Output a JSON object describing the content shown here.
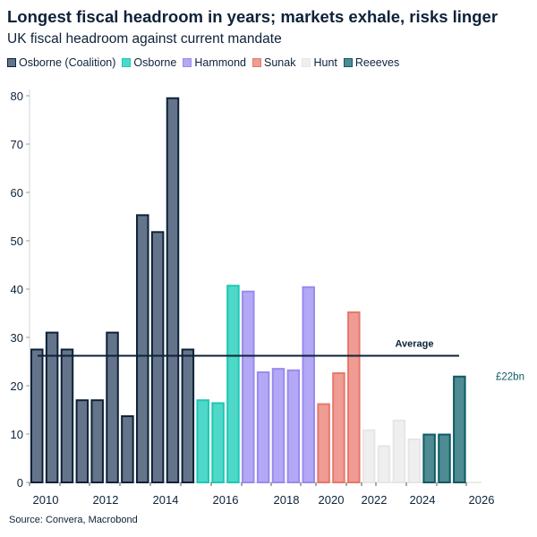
{
  "chart_data": {
    "type": "bar",
    "title": "Longest fiscal headroom in years; markets exhale, risks linger",
    "subtitle": "UK fiscal headroom against current mandate",
    "source": "Source: Convera, Macrobond",
    "ylim": [
      0,
      80
    ],
    "yticks": [
      0,
      10,
      20,
      30,
      40,
      50,
      60,
      70,
      80
    ],
    "xtick_labels": [
      "2010",
      "2012",
      "2014",
      "2016",
      "2018",
      "2020",
      "2022",
      "2024",
      "2026"
    ],
    "grid": false,
    "legend_placement": "top",
    "series": [
      {
        "name": "Osborne (Coalition)",
        "fill": "#64748a",
        "stroke": "#0d2238",
        "values": [
          27.5,
          31,
          27.5,
          17,
          17,
          31,
          13.7,
          55.3,
          51.8,
          79.5,
          27.5
        ]
      },
      {
        "name": "Osborne",
        "fill": "#4fd8c8",
        "stroke": "#1cc8b4",
        "values": [
          17,
          16.4,
          40.7
        ]
      },
      {
        "name": "Hammond",
        "fill": "#b3a8f5",
        "stroke": "#9a8aef",
        "values": [
          39.5,
          22.8,
          23.5,
          23.2,
          40.4
        ]
      },
      {
        "name": "Sunak",
        "fill": "#ef9c94",
        "stroke": "#e8776c",
        "values": [
          16.2,
          22.6,
          35.2
        ]
      },
      {
        "name": "Hunt",
        "fill": "#efefef",
        "stroke": "#e6e6e6",
        "values": [
          10.8,
          7.5,
          12.8,
          8.9
        ]
      },
      {
        "name": "Reeeves",
        "fill": "#4e8b93",
        "stroke": "#0e5a64",
        "values": [
          9.9,
          9.9,
          21.9
        ]
      }
    ],
    "average": {
      "label": "Average",
      "value": 26.2
    },
    "annotation": {
      "text": "£22bn",
      "color": "#0e5a64"
    }
  }
}
